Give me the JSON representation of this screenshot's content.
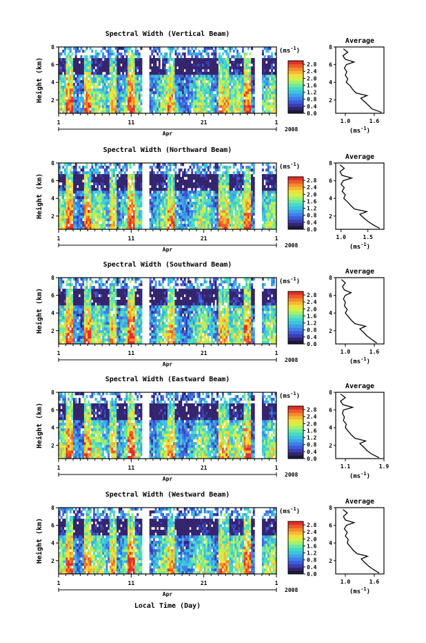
{
  "figure": {
    "xlabel": "Local Time (Day)",
    "month_label": "Apr",
    "year_label": "2008",
    "ylabel": "Height (km)",
    "colorbar_unit": "(ms",
    "unit_sup": "-1",
    "unit_close": ")",
    "avg_title": "Average",
    "avg_unit": "(ms",
    "colorscale": [
      "#35246e",
      "#3b3fb3",
      "#3c5ddb",
      "#3f7fe8",
      "#3ea3e6",
      "#3dc3e0",
      "#46d9c6",
      "#6ee8a0",
      "#a3f070",
      "#d3f04a",
      "#f2e03c",
      "#f7b733",
      "#f58a2e",
      "#ee5a2a",
      "#e0302a"
    ]
  },
  "chart_data": [
    {
      "type": "heatmap",
      "title": "Spectral Width (Vertical Beam)",
      "xlim": [
        1,
        31
      ],
      "ylim": [
        0.5,
        8
      ],
      "x_ticks": [
        "1",
        "11",
        "21",
        "1"
      ],
      "y_ticks": [
        "2",
        "4",
        "6",
        "8"
      ],
      "colorbar_ticks": [
        "0.0",
        "0.4",
        "0.8",
        "1.2",
        "1.6",
        "2.0",
        "2.4",
        "2.8"
      ],
      "colorbar_range": [
        0.0,
        3.0
      ],
      "average_profile": {
        "xlim": [
          0.8,
          1.8
        ],
        "x_ticks": [
          "1.0",
          "1.6"
        ],
        "ylim": [
          0.5,
          8
        ],
        "y_ticks": [
          "2",
          "4",
          "6",
          "8"
        ],
        "height": [
          0.6,
          1.0,
          1.4,
          1.8,
          2.2,
          2.5,
          2.8,
          3.2,
          3.6,
          4.0,
          4.4,
          4.8,
          5.2,
          5.6,
          6.0,
          6.3,
          6.6,
          7.0,
          7.4,
          7.8
        ],
        "width": [
          1.75,
          1.55,
          1.48,
          1.4,
          1.32,
          1.45,
          1.22,
          1.15,
          1.1,
          1.02,
          1.05,
          1.0,
          1.03,
          0.98,
          1.02,
          1.18,
          1.0,
          0.95,
          1.05,
          0.96
        ]
      }
    },
    {
      "type": "heatmap",
      "title": "Spectral Width (Northward Beam)",
      "xlim": [
        1,
        31
      ],
      "ylim": [
        0.5,
        8
      ],
      "x_ticks": [
        "1",
        "11",
        "21",
        "1"
      ],
      "y_ticks": [
        "2",
        "4",
        "6",
        "8"
      ],
      "colorbar_ticks": [
        "0.0",
        "0.4",
        "0.8",
        "1.2",
        "1.6",
        "2.0",
        "2.4",
        "2.8"
      ],
      "colorbar_range": [
        0.0,
        3.0
      ],
      "average_profile": {
        "xlim": [
          0.9,
          1.8
        ],
        "x_ticks": [
          "1.0",
          "1.5"
        ],
        "ylim": [
          0.5,
          8
        ],
        "y_ticks": [
          "2",
          "4",
          "6",
          "8"
        ],
        "height": [
          0.6,
          1.0,
          1.4,
          1.8,
          2.2,
          2.5,
          2.8,
          3.2,
          3.6,
          4.0,
          4.4,
          4.8,
          5.2,
          5.6,
          6.0,
          6.3,
          6.6,
          7.0,
          7.4,
          7.8
        ],
        "width": [
          1.72,
          1.6,
          1.5,
          1.42,
          1.35,
          1.48,
          1.25,
          1.18,
          1.12,
          1.05,
          1.08,
          1.02,
          1.06,
          1.0,
          1.04,
          1.2,
          1.02,
          0.98,
          1.06,
          0.98
        ]
      }
    },
    {
      "type": "heatmap",
      "title": "Spectral Width (Southward Beam)",
      "xlim": [
        1,
        31
      ],
      "ylim": [
        0.5,
        8
      ],
      "x_ticks": [
        "1",
        "11",
        "21",
        "1"
      ],
      "y_ticks": [
        "2",
        "4",
        "6",
        "8"
      ],
      "colorbar_ticks": [
        "0.0",
        "0.4",
        "0.8",
        "1.2",
        "1.6",
        "2.0",
        "2.4",
        "2.8"
      ],
      "colorbar_range": [
        0.0,
        3.0
      ],
      "average_profile": {
        "xlim": [
          0.8,
          1.8
        ],
        "x_ticks": [
          "1.0",
          "1.6"
        ],
        "ylim": [
          0.5,
          8
        ],
        "y_ticks": [
          "2",
          "4",
          "6",
          "8"
        ],
        "height": [
          0.6,
          1.0,
          1.4,
          1.8,
          2.2,
          2.5,
          2.8,
          3.2,
          3.6,
          4.0,
          4.4,
          4.8,
          5.2,
          5.6,
          6.0,
          6.3,
          6.6,
          7.0,
          7.4,
          7.8
        ],
        "width": [
          1.65,
          1.55,
          1.45,
          1.38,
          1.3,
          1.42,
          1.2,
          1.12,
          1.06,
          1.0,
          1.04,
          0.98,
          1.0,
          0.96,
          1.0,
          1.12,
          0.98,
          0.94,
          1.0,
          0.92
        ]
      }
    },
    {
      "type": "heatmap",
      "title": "Spectral Width (Eastward Beam)",
      "xlim": [
        1,
        31
      ],
      "ylim": [
        0.5,
        8
      ],
      "x_ticks": [
        "1",
        "11",
        "21",
        "1"
      ],
      "y_ticks": [
        "2",
        "4",
        "6",
        "8"
      ],
      "colorbar_ticks": [
        "0.0",
        "0.4",
        "0.8",
        "1.2",
        "1.6",
        "2.0",
        "2.4",
        "2.8"
      ],
      "colorbar_range": [
        0.0,
        3.0
      ],
      "average_profile": {
        "xlim": [
          0.9,
          1.9
        ],
        "x_ticks": [
          "1.1",
          "1.9"
        ],
        "ylim": [
          0.5,
          8
        ],
        "y_ticks": [
          "2",
          "4",
          "6",
          "8"
        ],
        "height": [
          0.6,
          1.0,
          1.4,
          1.8,
          2.2,
          2.5,
          2.8,
          3.2,
          3.6,
          4.0,
          4.4,
          4.8,
          5.2,
          5.6,
          6.0,
          6.3,
          6.6,
          7.0,
          7.4,
          7.8
        ],
        "width": [
          1.8,
          1.65,
          1.55,
          1.48,
          1.4,
          1.52,
          1.3,
          1.22,
          1.16,
          1.1,
          1.12,
          1.06,
          1.08,
          1.04,
          1.06,
          1.25,
          1.05,
          1.0,
          1.1,
          1.0
        ]
      }
    },
    {
      "type": "heatmap",
      "title": "Spectral Width (Westward Beam)",
      "xlim": [
        1,
        31
      ],
      "ylim": [
        0.5,
        8
      ],
      "x_ticks": [
        "1",
        "11",
        "21",
        "1"
      ],
      "y_ticks": [
        "2",
        "4",
        "6",
        "8"
      ],
      "colorbar_ticks": [
        "0.0",
        "0.4",
        "0.8",
        "1.2",
        "1.6",
        "2.0",
        "2.4",
        "2.8"
      ],
      "colorbar_range": [
        0.0,
        3.0
      ],
      "average_profile": {
        "xlim": [
          0.8,
          1.8
        ],
        "x_ticks": [
          "1.0",
          "1.6"
        ],
        "ylim": [
          0.5,
          8
        ],
        "y_ticks": [
          "2",
          "4",
          "6",
          "8"
        ],
        "height": [
          0.6,
          1.0,
          1.4,
          1.8,
          2.2,
          2.5,
          2.8,
          3.2,
          3.6,
          4.0,
          4.4,
          4.8,
          5.2,
          5.6,
          6.0,
          6.3,
          6.6,
          7.0,
          7.4,
          7.8
        ],
        "width": [
          1.7,
          1.58,
          1.48,
          1.4,
          1.33,
          1.46,
          1.24,
          1.16,
          1.1,
          1.04,
          1.06,
          1.0,
          1.04,
          0.98,
          1.02,
          1.18,
          1.0,
          0.96,
          1.04,
          0.95
        ]
      }
    }
  ]
}
